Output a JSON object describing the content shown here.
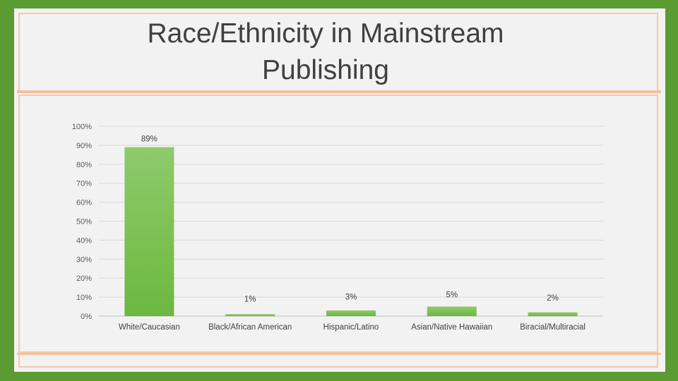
{
  "slide": {
    "title": "Race/Ethnicity in Mainstream Publishing"
  },
  "colors": {
    "background": "#5a9b32",
    "bar_top": "#8fca6b",
    "bar_bottom": "#6cb83f",
    "accent_line": "#f4c09a"
  },
  "chart_data": {
    "type": "bar",
    "title": "",
    "xlabel": "",
    "ylabel": "",
    "categories": [
      "White/Caucasian",
      "Black/African American",
      "Hispanic/Latino",
      "Asian/Native Hawaiian",
      "Biracial/Multiracial"
    ],
    "values": [
      89,
      1,
      3,
      5,
      2
    ],
    "data_labels": [
      "89%",
      "1%",
      "3%",
      "5%",
      "2%"
    ],
    "ylim": [
      0,
      100
    ],
    "yticks": [
      0,
      10,
      20,
      30,
      40,
      50,
      60,
      70,
      80,
      90,
      100
    ],
    "ytick_labels": [
      "0%",
      "10%",
      "20%",
      "30%",
      "40%",
      "50%",
      "60%",
      "70%",
      "80%",
      "90%",
      "100%"
    ],
    "grid": true,
    "legend": "none"
  }
}
